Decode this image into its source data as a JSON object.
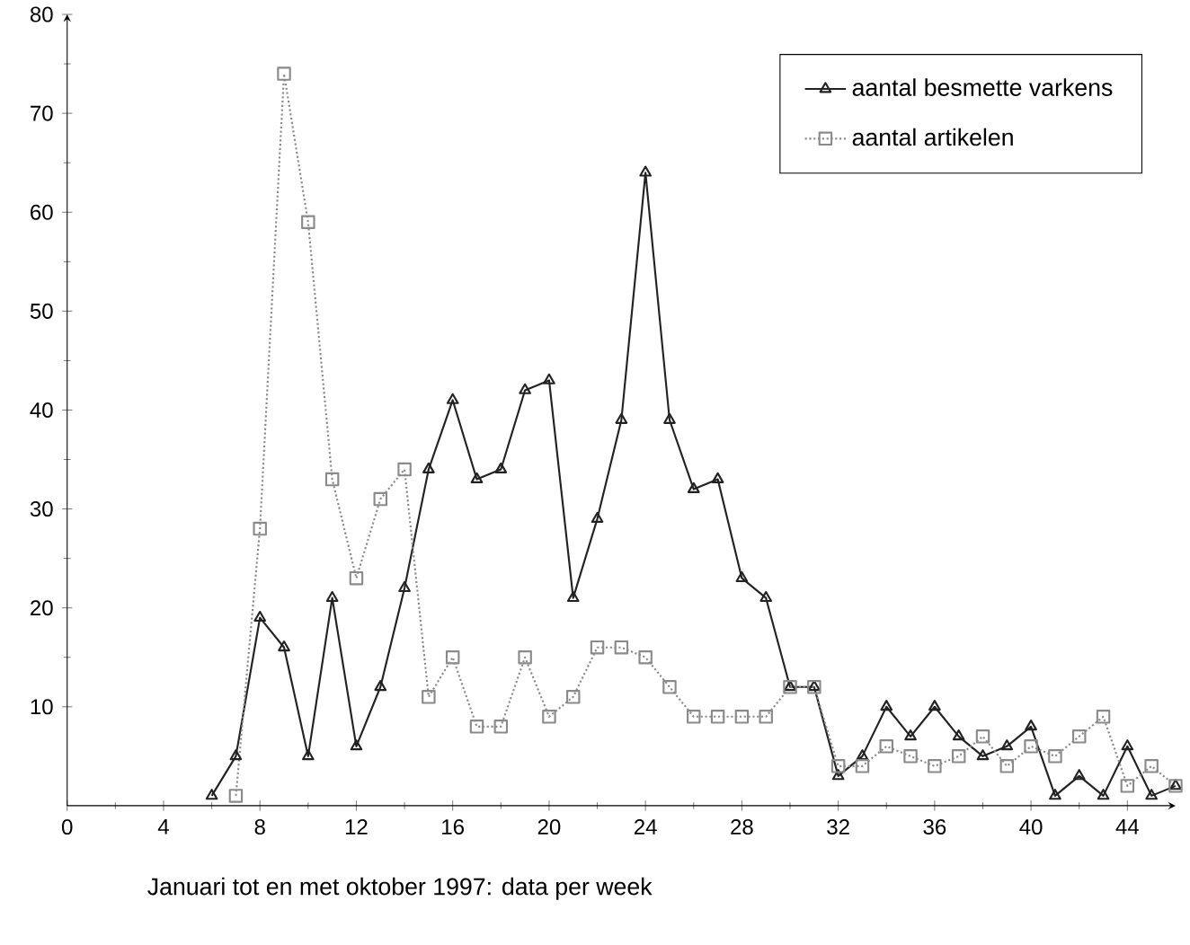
{
  "chart_data": {
    "type": "line",
    "xlabel": "Januari tot en met oktober 1997:  data per week",
    "xlim": [
      0,
      46
    ],
    "xticks": [
      0,
      4,
      8,
      12,
      16,
      20,
      24,
      28,
      32,
      36,
      40,
      44
    ],
    "ylim": [
      0,
      80
    ],
    "yticks": [
      10,
      20,
      30,
      40,
      50,
      60,
      70,
      80
    ],
    "grid": false,
    "legend": "top right",
    "series": [
      {
        "name": "aantal besmette varkens",
        "color": "#222222",
        "marker": "triangle",
        "line_style": "solid",
        "x": [
          6,
          7,
          8,
          9,
          10,
          11,
          12,
          13,
          14,
          15,
          16,
          17,
          18,
          19,
          20,
          21,
          22,
          23,
          24,
          25,
          26,
          27,
          28,
          29,
          30,
          31,
          32,
          33,
          34,
          35,
          36,
          37,
          38,
          39,
          40,
          41,
          42,
          43,
          44,
          45,
          46
        ],
        "values": [
          1,
          5,
          19,
          16,
          5,
          21,
          6,
          12,
          22,
          34,
          41,
          33,
          34,
          42,
          43,
          21,
          29,
          39,
          64,
          39,
          32,
          33,
          23,
          21,
          12,
          12,
          3,
          5,
          10,
          7,
          10,
          7,
          5,
          6,
          8,
          1,
          3,
          1,
          6,
          1,
          2
        ]
      },
      {
        "name": "aantal artikelen",
        "color": "#8a8a8a",
        "marker": "square",
        "line_style": "dotted",
        "x": [
          7,
          8,
          9,
          10,
          11,
          12,
          13,
          14,
          15,
          16,
          17,
          18,
          19,
          20,
          21,
          22,
          23,
          24,
          25,
          26,
          27,
          28,
          29,
          30,
          31,
          32,
          33,
          34,
          35,
          36,
          37,
          38,
          39,
          40,
          41,
          42,
          43,
          44,
          45,
          46
        ],
        "values": [
          1,
          28,
          74,
          59,
          33,
          23,
          31,
          34,
          11,
          15,
          8,
          8,
          15,
          9,
          11,
          16,
          16,
          15,
          12,
          9,
          9,
          9,
          9,
          12,
          12,
          4,
          4,
          6,
          5,
          4,
          5,
          7,
          4,
          6,
          5,
          7,
          9,
          2,
          4,
          2
        ]
      }
    ]
  }
}
